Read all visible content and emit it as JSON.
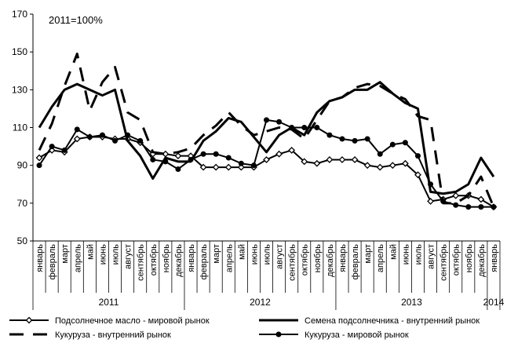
{
  "chart_data": {
    "type": "line",
    "annotation": "2011=100%",
    "ylim": [
      50,
      170
    ],
    "yticks": [
      50,
      70,
      90,
      110,
      130,
      150,
      170
    ],
    "grid": false,
    "legend_position": "bottom",
    "categories": [
      "январь",
      "февраль",
      "март",
      "апрель",
      "май",
      "июнь",
      "июль",
      "август",
      "сентябрь",
      "октябрь",
      "ноябрь",
      "декабрь",
      "январь",
      "февраль",
      "март",
      "апрель",
      "май",
      "июнь",
      "июль",
      "август",
      "сентябрь",
      "октябрь",
      "ноябрь",
      "декабрь",
      "январь",
      "февраль",
      "март",
      "апрель",
      "май",
      "июнь",
      "июль",
      "август",
      "сентябрь",
      "октябрь",
      "ноябрь",
      "декабрь",
      "январь"
    ],
    "years": [
      {
        "label": "2011",
        "start": 0,
        "end": 11
      },
      {
        "label": "2012",
        "start": 12,
        "end": 23
      },
      {
        "label": "2013",
        "start": 24,
        "end": 35
      },
      {
        "label": "2014",
        "start": 36,
        "end": 36
      }
    ],
    "series": [
      {
        "name": "Подсолнечное масло - мировой рынок",
        "style": "diamond",
        "color": "#000000",
        "values": [
          94,
          98,
          97,
          104,
          105,
          105,
          104,
          104,
          102,
          96,
          96,
          95,
          95,
          89,
          89,
          89,
          89,
          89,
          93,
          96,
          98,
          92,
          91,
          93,
          93,
          93,
          90,
          89,
          90,
          91,
          85,
          71,
          72,
          74,
          74,
          72,
          68
        ]
      },
      {
        "name": "Семена подсолнечника - внутренний рынок",
        "style": "solid",
        "color": "#000000",
        "values": [
          110,
          121,
          130,
          133,
          130,
          127,
          130,
          103,
          95,
          83,
          94,
          92,
          92,
          103,
          108,
          115,
          113,
          105,
          97,
          106,
          110,
          106,
          118,
          124,
          126,
          130,
          130,
          134,
          128,
          123,
          120,
          76,
          75,
          76,
          80,
          94,
          84
        ]
      },
      {
        "name": "Кукуруза - внутренний рынок",
        "style": "dashed",
        "color": "#000000",
        "values": [
          98,
          112,
          132,
          149,
          119,
          134,
          142,
          118,
          114,
          97,
          96,
          97,
          99,
          106,
          111,
          118,
          111,
          106,
          108,
          110,
          109,
          104,
          114,
          124,
          126,
          131,
          133,
          132,
          128,
          125,
          116,
          114,
          70,
          70,
          74,
          84,
          68
        ]
      },
      {
        "name": "Кукуруза - мировой рынок",
        "style": "circle",
        "color": "#000000",
        "values": [
          90,
          100,
          98,
          109,
          105,
          106,
          103,
          106,
          103,
          93,
          92,
          88,
          93,
          96,
          96,
          94,
          91,
          90,
          114,
          113,
          110,
          110,
          110,
          106,
          104,
          103,
          104,
          96,
          101,
          102,
          95,
          80,
          71,
          69,
          68,
          68,
          68
        ]
      }
    ]
  }
}
